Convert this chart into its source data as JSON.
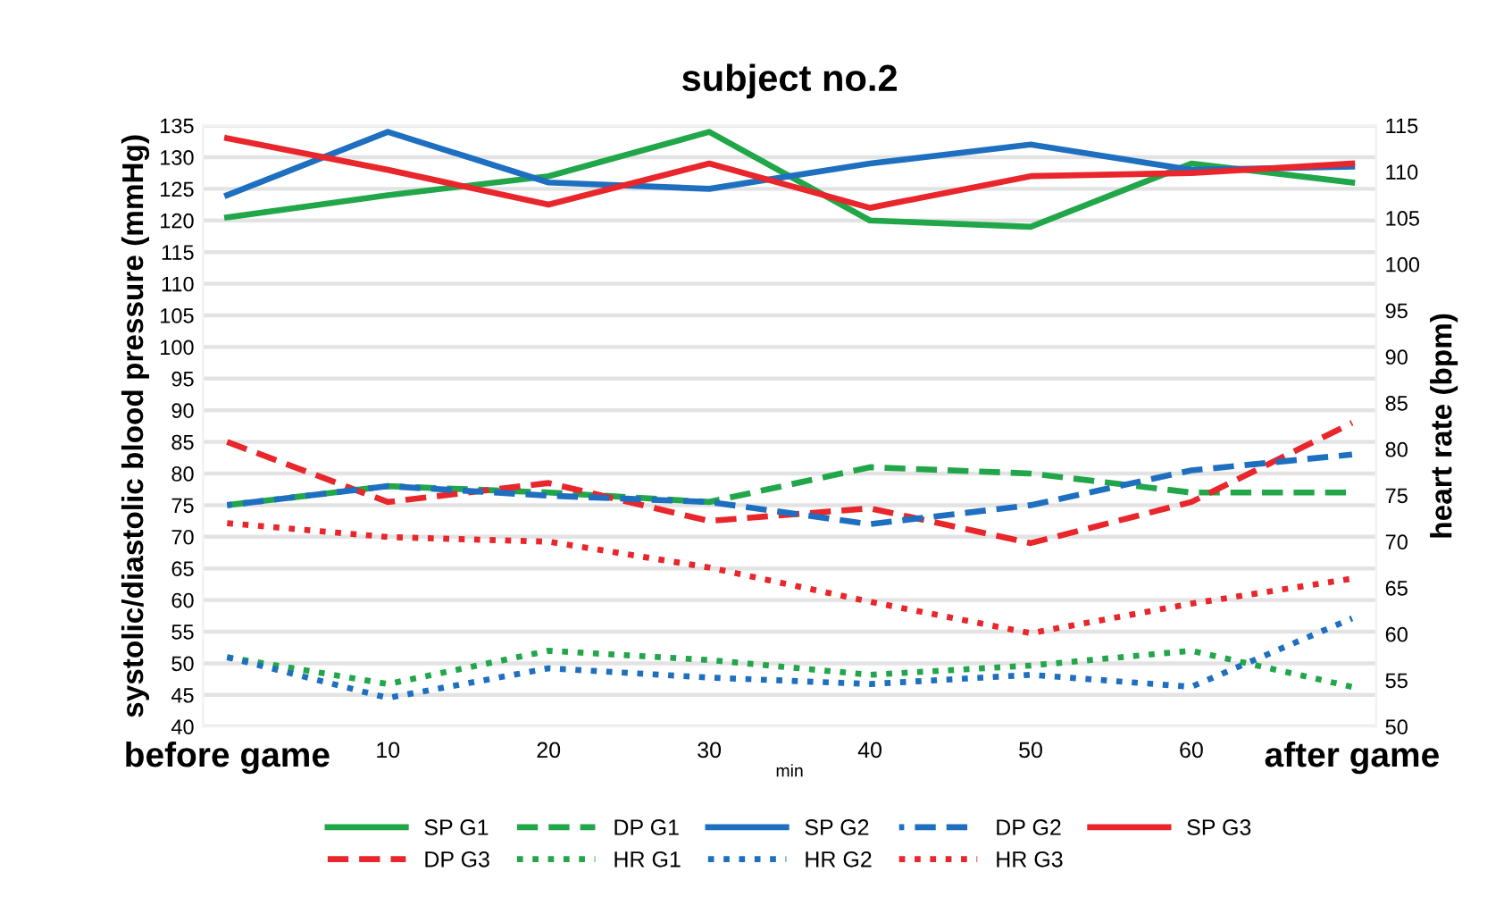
{
  "chart_data": {
    "type": "line",
    "title": "subject no.2",
    "xlabel": "min",
    "ylabel": "systolic/diastolic blood pressure (mmHg)",
    "y2label": "heart rate (bpm)",
    "categories": [
      "before game",
      "10",
      "20",
      "30",
      "40",
      "50",
      "60",
      "after game"
    ],
    "ylim": [
      40,
      135
    ],
    "yticks": [
      40,
      45,
      50,
      55,
      60,
      65,
      70,
      75,
      80,
      85,
      90,
      95,
      100,
      105,
      110,
      115,
      120,
      125,
      130,
      135
    ],
    "y2lim": [
      50,
      115
    ],
    "y2ticks": [
      50,
      55,
      60,
      65,
      70,
      75,
      80,
      85,
      90,
      95,
      100,
      105,
      110,
      115
    ],
    "grid": "y",
    "legend": "bottom",
    "marker": "none",
    "series": [
      {
        "name": "SP G1",
        "color": "#22a64a",
        "line_style": "solid",
        "values": [
          120.5,
          124,
          127,
          134,
          120,
          119,
          129,
          126
        ]
      },
      {
        "name": "DP G1",
        "color": "#22a64a",
        "line_style": "dashed",
        "values": [
          75,
          78,
          77,
          75.5,
          81,
          80,
          77,
          77
        ]
      },
      {
        "name": "SP G2",
        "color": "#1f6fc0",
        "line_style": "solid",
        "values": [
          124,
          134,
          126,
          125,
          129,
          132,
          128,
          128.5
        ]
      },
      {
        "name": "DP G2",
        "color": "#1f6fc0",
        "line_style": "dashed",
        "values": [
          75,
          78,
          76.5,
          75.5,
          72,
          75,
          80.5,
          83
        ]
      },
      {
        "name": "SP G3",
        "color": "#e8262b",
        "line_style": "solid",
        "values": [
          133,
          128,
          122.5,
          129,
          122,
          127,
          127.5,
          129
        ]
      },
      {
        "name": "DP G3",
        "color": "#e8262b",
        "line_style": "dashed",
        "values": [
          85,
          75.5,
          78.5,
          72.5,
          74.5,
          69,
          75.5,
          88
        ]
      },
      {
        "name": "HR G1",
        "color": "#22a64a",
        "line_style": "dotted",
        "axis": "y2",
        "values": [
          57.5,
          54.6,
          58.2,
          57.2,
          55.6,
          56.6,
          58.2,
          54.3
        ]
      },
      {
        "name": "HR G2",
        "color": "#1f6fc0",
        "line_style": "dotted",
        "axis": "y2",
        "values": [
          57.5,
          53.1,
          56.3,
          55.3,
          54.6,
          55.6,
          54.3,
          61.7
        ]
      },
      {
        "name": "HR G3",
        "color": "#e8262b",
        "line_style": "dotted",
        "axis": "y2",
        "values": [
          72,
          70.5,
          70,
          67.2,
          63.5,
          60.1,
          63.3,
          66
        ]
      }
    ]
  }
}
